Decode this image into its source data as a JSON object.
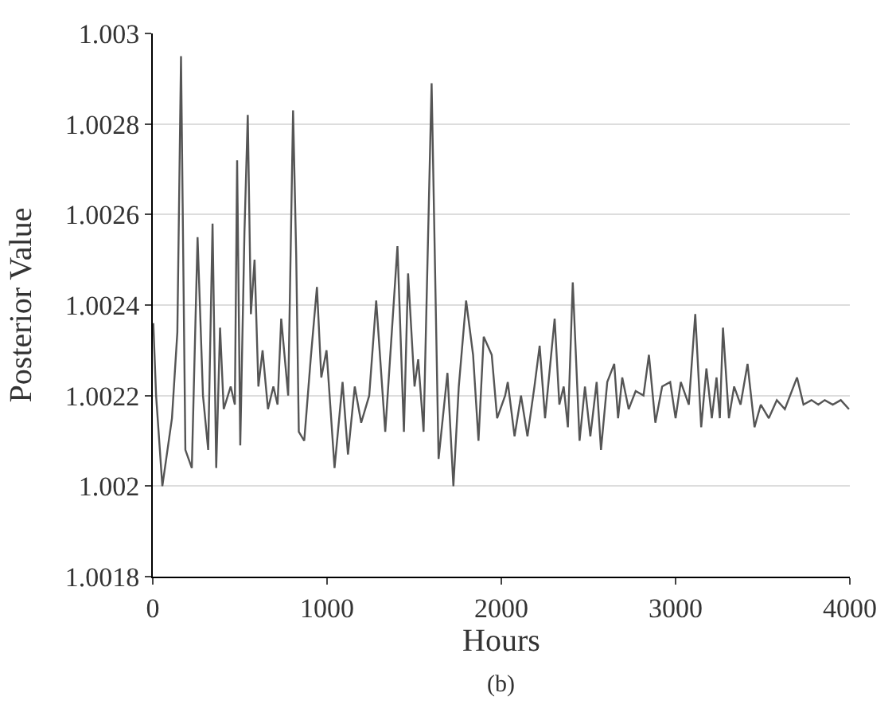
{
  "chart_data": {
    "type": "line",
    "xlabel": "Hours",
    "ylabel": "Posterior Value",
    "annotations": [
      "(b)"
    ],
    "xlim": [
      0,
      4000
    ],
    "xticks": [
      0,
      1000,
      2000,
      3000,
      4000
    ],
    "ylim": [
      1.0018,
      1.003
    ],
    "yticks": [
      1.0018,
      1.002,
      1.0022,
      1.0024,
      1.0026,
      1.0028,
      1.003
    ],
    "grid": "y",
    "marker": "none",
    "line_style": "solid",
    "series": [
      {
        "color": "#555555",
        "x": [
          3,
          19,
          55,
          110,
          141,
          162,
          187,
          224,
          257,
          288,
          318,
          343,
          364,
          386,
          407,
          447,
          471,
          484,
          502,
          526,
          545,
          563,
          584,
          606,
          630,
          661,
          692,
          716,
          737,
          777,
          805,
          823,
          838,
          869,
          906,
          942,
          967,
          997,
          1043,
          1089,
          1120,
          1159,
          1196,
          1242,
          1282,
          1334,
          1404,
          1441,
          1465,
          1502,
          1523,
          1554,
          1600,
          1640,
          1691,
          1725,
          1756,
          1798,
          1838,
          1869,
          1899,
          1945,
          1976,
          2022,
          2037,
          2076,
          2113,
          2150,
          2190,
          2220,
          2251,
          2306,
          2333,
          2358,
          2382,
          2410,
          2449,
          2480,
          2511,
          2547,
          2572,
          2608,
          2648,
          2670,
          2694,
          2731,
          2771,
          2816,
          2847,
          2884,
          2923,
          2969,
          3000,
          3030,
          3076,
          3113,
          3147,
          3177,
          3208,
          3235,
          3254,
          3272,
          3306,
          3336,
          3373,
          3413,
          3453,
          3489,
          3535,
          3581,
          3627,
          3697,
          3734,
          3780,
          3819,
          3856,
          3902,
          3948,
          3995
        ],
        "values": [
          1.00236,
          1.0022,
          1.002,
          1.00215,
          1.00234,
          1.00295,
          1.00208,
          1.00204,
          1.00255,
          1.0022,
          1.00208,
          1.00258,
          1.00204,
          1.00235,
          1.00217,
          1.00222,
          1.00218,
          1.00272,
          1.00209,
          1.00256,
          1.00282,
          1.00238,
          1.0025,
          1.00222,
          1.0023,
          1.00217,
          1.00222,
          1.00218,
          1.00237,
          1.0022,
          1.00283,
          1.00251,
          1.00212,
          1.0021,
          1.00228,
          1.00244,
          1.00224,
          1.0023,
          1.00204,
          1.00223,
          1.00207,
          1.00222,
          1.00214,
          1.0022,
          1.00241,
          1.00212,
          1.00253,
          1.00212,
          1.00247,
          1.00222,
          1.00228,
          1.00212,
          1.00289,
          1.00206,
          1.00225,
          1.002,
          1.00222,
          1.00241,
          1.00229,
          1.0021,
          1.00233,
          1.00229,
          1.00215,
          1.0022,
          1.00223,
          1.00211,
          1.0022,
          1.00211,
          1.00222,
          1.00231,
          1.00215,
          1.00237,
          1.00218,
          1.00222,
          1.00213,
          1.00245,
          1.0021,
          1.00222,
          1.00211,
          1.00223,
          1.00208,
          1.00223,
          1.00227,
          1.00215,
          1.00224,
          1.00217,
          1.00221,
          1.0022,
          1.00229,
          1.00214,
          1.00222,
          1.00223,
          1.00215,
          1.00223,
          1.00218,
          1.00238,
          1.00213,
          1.00226,
          1.00215,
          1.00224,
          1.00215,
          1.00235,
          1.00215,
          1.00222,
          1.00218,
          1.00227,
          1.00213,
          1.00218,
          1.00215,
          1.00219,
          1.00217,
          1.00224,
          1.00218,
          1.00219,
          1.00218,
          1.00219,
          1.00218,
          1.00219,
          1.00217
        ]
      }
    ]
  }
}
